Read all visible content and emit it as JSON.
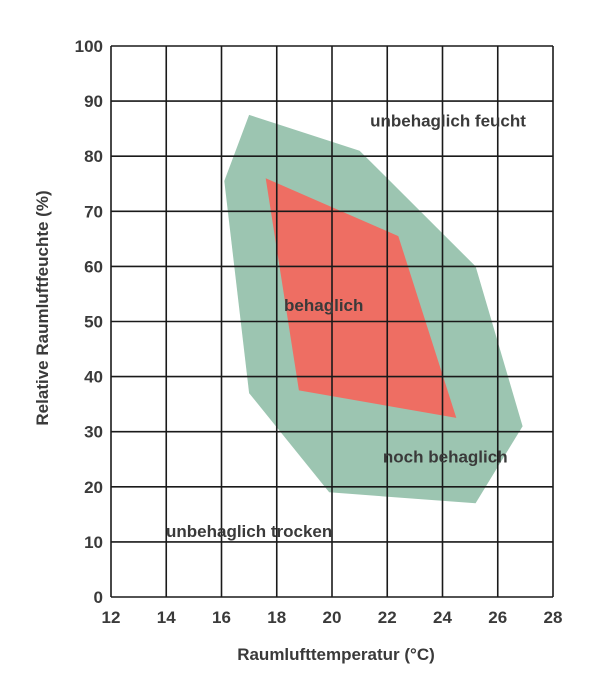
{
  "chart_data": {
    "type": "area",
    "xlabel": "Raumlufttemperatur (°C)",
    "ylabel": "Relative Raumluftfeuchte (%)",
    "xlim": [
      12,
      28
    ],
    "ylim": [
      0,
      100
    ],
    "x_ticks": [
      12,
      14,
      16,
      18,
      20,
      22,
      24,
      26,
      28
    ],
    "y_ticks": [
      0,
      10,
      20,
      30,
      40,
      50,
      60,
      70,
      80,
      90,
      100
    ],
    "grid": true,
    "regions": [
      {
        "label": "noch behaglich",
        "color": "#9cc5b1",
        "polygon": [
          [
            17.0,
            87.5
          ],
          [
            21.0,
            81.0
          ],
          [
            25.2,
            60.0
          ],
          [
            26.9,
            31.0
          ],
          [
            25.2,
            17.0
          ],
          [
            19.9,
            19.0
          ],
          [
            17.0,
            37.0
          ],
          [
            16.1,
            75.5
          ]
        ],
        "label_pos": [
          24.1,
          25.5
        ]
      },
      {
        "label": "behaglich",
        "color": "#ee6e63",
        "polygon": [
          [
            17.6,
            76.0
          ],
          [
            22.4,
            65.5
          ],
          [
            24.5,
            32.5
          ],
          [
            18.8,
            37.5
          ]
        ],
        "label_pos": [
          19.7,
          53.0
        ]
      }
    ],
    "annotations": [
      {
        "text": "unbehaglich feucht",
        "x": 24.2,
        "y": 86.5
      },
      {
        "text": "unbehaglich trocken",
        "x": 17.0,
        "y": 12.0
      }
    ]
  }
}
